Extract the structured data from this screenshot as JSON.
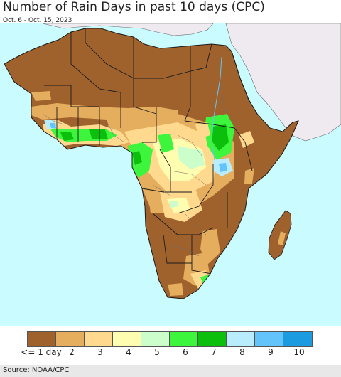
{
  "title": "Number of Rain Days in past 10 days (CPC)",
  "subtitle": "Oct. 6 - Oct. 15, 2023",
  "source": "Source: NOAA/CPC",
  "colors": {
    "ocean": "#c9fbff",
    "nonafrica": "#efeaf0",
    "border": "#1a1a1a",
    "inner_border": "#6a6a6a"
  },
  "legend": {
    "colors": [
      "#a0622d",
      "#e5ad5e",
      "#ffd98d",
      "#fffdb0",
      "#ccfecb",
      "#3df53d",
      "#0cbf0c",
      "#b9edfd",
      "#63c4fc",
      "#1c9be0"
    ],
    "labels": [
      "<= 1 day",
      "2",
      "3",
      "4",
      "5",
      "6",
      "7",
      "8",
      "9",
      "10"
    ]
  }
}
